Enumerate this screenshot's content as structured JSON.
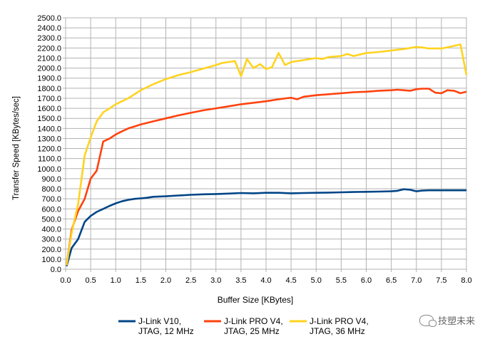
{
  "chart_data": {
    "type": "line",
    "xlabel": "Buffer Size [KBytes]",
    "ylabel": "Transfer Speed [KBytes/sec]",
    "xlim": [
      0,
      8
    ],
    "ylim": [
      0,
      2500
    ],
    "x_ticks": [
      "0.0",
      "0.5",
      "1.0",
      "1.5",
      "2.0",
      "2.5",
      "3.0",
      "3.5",
      "4.0",
      "4.5",
      "5.0",
      "5.5",
      "6.0",
      "6.5",
      "7.0",
      "7.5",
      "8.0"
    ],
    "y_ticks": [
      "0.0",
      "100.0",
      "200.0",
      "300.0",
      "400.0",
      "500.0",
      "600.0",
      "700.0",
      "800.0",
      "900.0",
      "1000.0",
      "1100.0",
      "1200.0",
      "1300.0",
      "1400.0",
      "1500.0",
      "1600.0",
      "1700.0",
      "1800.0",
      "1900.0",
      "2000.0",
      "2100.0",
      "2200.0",
      "2300.0",
      "2400.0",
      "2500.0"
    ],
    "grid": true,
    "legend_position": "bottom",
    "series": [
      {
        "name": "J-Link V10, JTAG, 12 MHz",
        "legend_lines": [
          "J-Link V10,",
          "JTAG, 12 MHz"
        ],
        "color": "#004586",
        "points": [
          [
            0.02,
            30
          ],
          [
            0.12,
            210
          ],
          [
            0.25,
            300
          ],
          [
            0.38,
            470
          ],
          [
            0.5,
            530
          ],
          [
            0.62,
            570
          ],
          [
            0.75,
            600
          ],
          [
            0.88,
            630
          ],
          [
            1.0,
            655
          ],
          [
            1.12,
            675
          ],
          [
            1.25,
            690
          ],
          [
            1.38,
            700
          ],
          [
            1.5,
            705
          ],
          [
            1.62,
            710
          ],
          [
            1.75,
            720
          ],
          [
            2.0,
            725
          ],
          [
            2.25,
            733
          ],
          [
            2.5,
            740
          ],
          [
            2.75,
            745
          ],
          [
            3.0,
            748
          ],
          [
            3.25,
            752
          ],
          [
            3.5,
            758
          ],
          [
            3.75,
            755
          ],
          [
            4.0,
            760
          ],
          [
            4.25,
            760
          ],
          [
            4.5,
            755
          ],
          [
            4.75,
            758
          ],
          [
            5.0,
            760
          ],
          [
            5.25,
            762
          ],
          [
            5.5,
            765
          ],
          [
            5.75,
            768
          ],
          [
            6.0,
            770
          ],
          [
            6.25,
            772
          ],
          [
            6.5,
            775
          ],
          [
            6.62,
            780
          ],
          [
            6.75,
            795
          ],
          [
            6.88,
            790
          ],
          [
            7.0,
            775
          ],
          [
            7.12,
            782
          ],
          [
            7.25,
            785
          ],
          [
            7.5,
            785
          ],
          [
            7.75,
            785
          ],
          [
            8.0,
            785
          ]
        ]
      },
      {
        "name": "J-Link PRO V4, JTAG, 25 MHz",
        "legend_lines": [
          "J-Link PRO V4,",
          "JTAG, 25 MHz"
        ],
        "color": "#ff420e",
        "points": [
          [
            0.02,
            40
          ],
          [
            0.12,
            390
          ],
          [
            0.25,
            580
          ],
          [
            0.38,
            700
          ],
          [
            0.5,
            900
          ],
          [
            0.62,
            980
          ],
          [
            0.75,
            1270
          ],
          [
            0.88,
            1300
          ],
          [
            1.0,
            1340
          ],
          [
            1.12,
            1370
          ],
          [
            1.25,
            1400
          ],
          [
            1.38,
            1420
          ],
          [
            1.5,
            1440
          ],
          [
            1.75,
            1470
          ],
          [
            2.0,
            1500
          ],
          [
            2.25,
            1530
          ],
          [
            2.5,
            1555
          ],
          [
            2.75,
            1580
          ],
          [
            3.0,
            1600
          ],
          [
            3.25,
            1620
          ],
          [
            3.5,
            1640
          ],
          [
            3.75,
            1655
          ],
          [
            4.0,
            1670
          ],
          [
            4.25,
            1690
          ],
          [
            4.4,
            1700
          ],
          [
            4.5,
            1705
          ],
          [
            4.62,
            1690
          ],
          [
            4.75,
            1715
          ],
          [
            5.0,
            1730
          ],
          [
            5.25,
            1740
          ],
          [
            5.5,
            1750
          ],
          [
            5.75,
            1760
          ],
          [
            6.0,
            1765
          ],
          [
            6.25,
            1775
          ],
          [
            6.5,
            1780
          ],
          [
            6.62,
            1785
          ],
          [
            6.75,
            1780
          ],
          [
            6.88,
            1775
          ],
          [
            7.0,
            1790
          ],
          [
            7.12,
            1795
          ],
          [
            7.25,
            1795
          ],
          [
            7.38,
            1755
          ],
          [
            7.5,
            1750
          ],
          [
            7.62,
            1780
          ],
          [
            7.75,
            1775
          ],
          [
            7.88,
            1750
          ],
          [
            8.0,
            1765
          ]
        ]
      },
      {
        "name": "J-Link PRO V4, JTAG, 36 MHz",
        "legend_lines": [
          "J-Link PRO V4,",
          "JTAG, 36 MHz"
        ],
        "color": "#ffd320",
        "points": [
          [
            0.02,
            40
          ],
          [
            0.12,
            360
          ],
          [
            0.25,
            650
          ],
          [
            0.38,
            1130
          ],
          [
            0.5,
            1310
          ],
          [
            0.62,
            1470
          ],
          [
            0.75,
            1560
          ],
          [
            0.88,
            1600
          ],
          [
            1.0,
            1640
          ],
          [
            1.25,
            1700
          ],
          [
            1.5,
            1780
          ],
          [
            1.75,
            1840
          ],
          [
            2.0,
            1890
          ],
          [
            2.25,
            1930
          ],
          [
            2.5,
            1960
          ],
          [
            2.75,
            1995
          ],
          [
            3.0,
            2030
          ],
          [
            3.12,
            2050
          ],
          [
            3.25,
            2060
          ],
          [
            3.38,
            2070
          ],
          [
            3.5,
            1920
          ],
          [
            3.62,
            2090
          ],
          [
            3.75,
            2000
          ],
          [
            3.88,
            2040
          ],
          [
            4.0,
            1990
          ],
          [
            4.12,
            2010
          ],
          [
            4.25,
            2150
          ],
          [
            4.38,
            2030
          ],
          [
            4.5,
            2060
          ],
          [
            4.75,
            2080
          ],
          [
            5.0,
            2100
          ],
          [
            5.12,
            2090
          ],
          [
            5.25,
            2110
          ],
          [
            5.5,
            2120
          ],
          [
            5.62,
            2140
          ],
          [
            5.75,
            2120
          ],
          [
            6.0,
            2150
          ],
          [
            6.25,
            2160
          ],
          [
            6.5,
            2175
          ],
          [
            6.75,
            2190
          ],
          [
            6.88,
            2200
          ],
          [
            7.0,
            2210
          ],
          [
            7.12,
            2205
          ],
          [
            7.25,
            2195
          ],
          [
            7.5,
            2195
          ],
          [
            7.75,
            2220
          ],
          [
            7.88,
            2235
          ],
          [
            8.0,
            1930
          ]
        ]
      }
    ]
  },
  "watermark": {
    "text": "技塑未来",
    "icon": "wechat-icon"
  }
}
